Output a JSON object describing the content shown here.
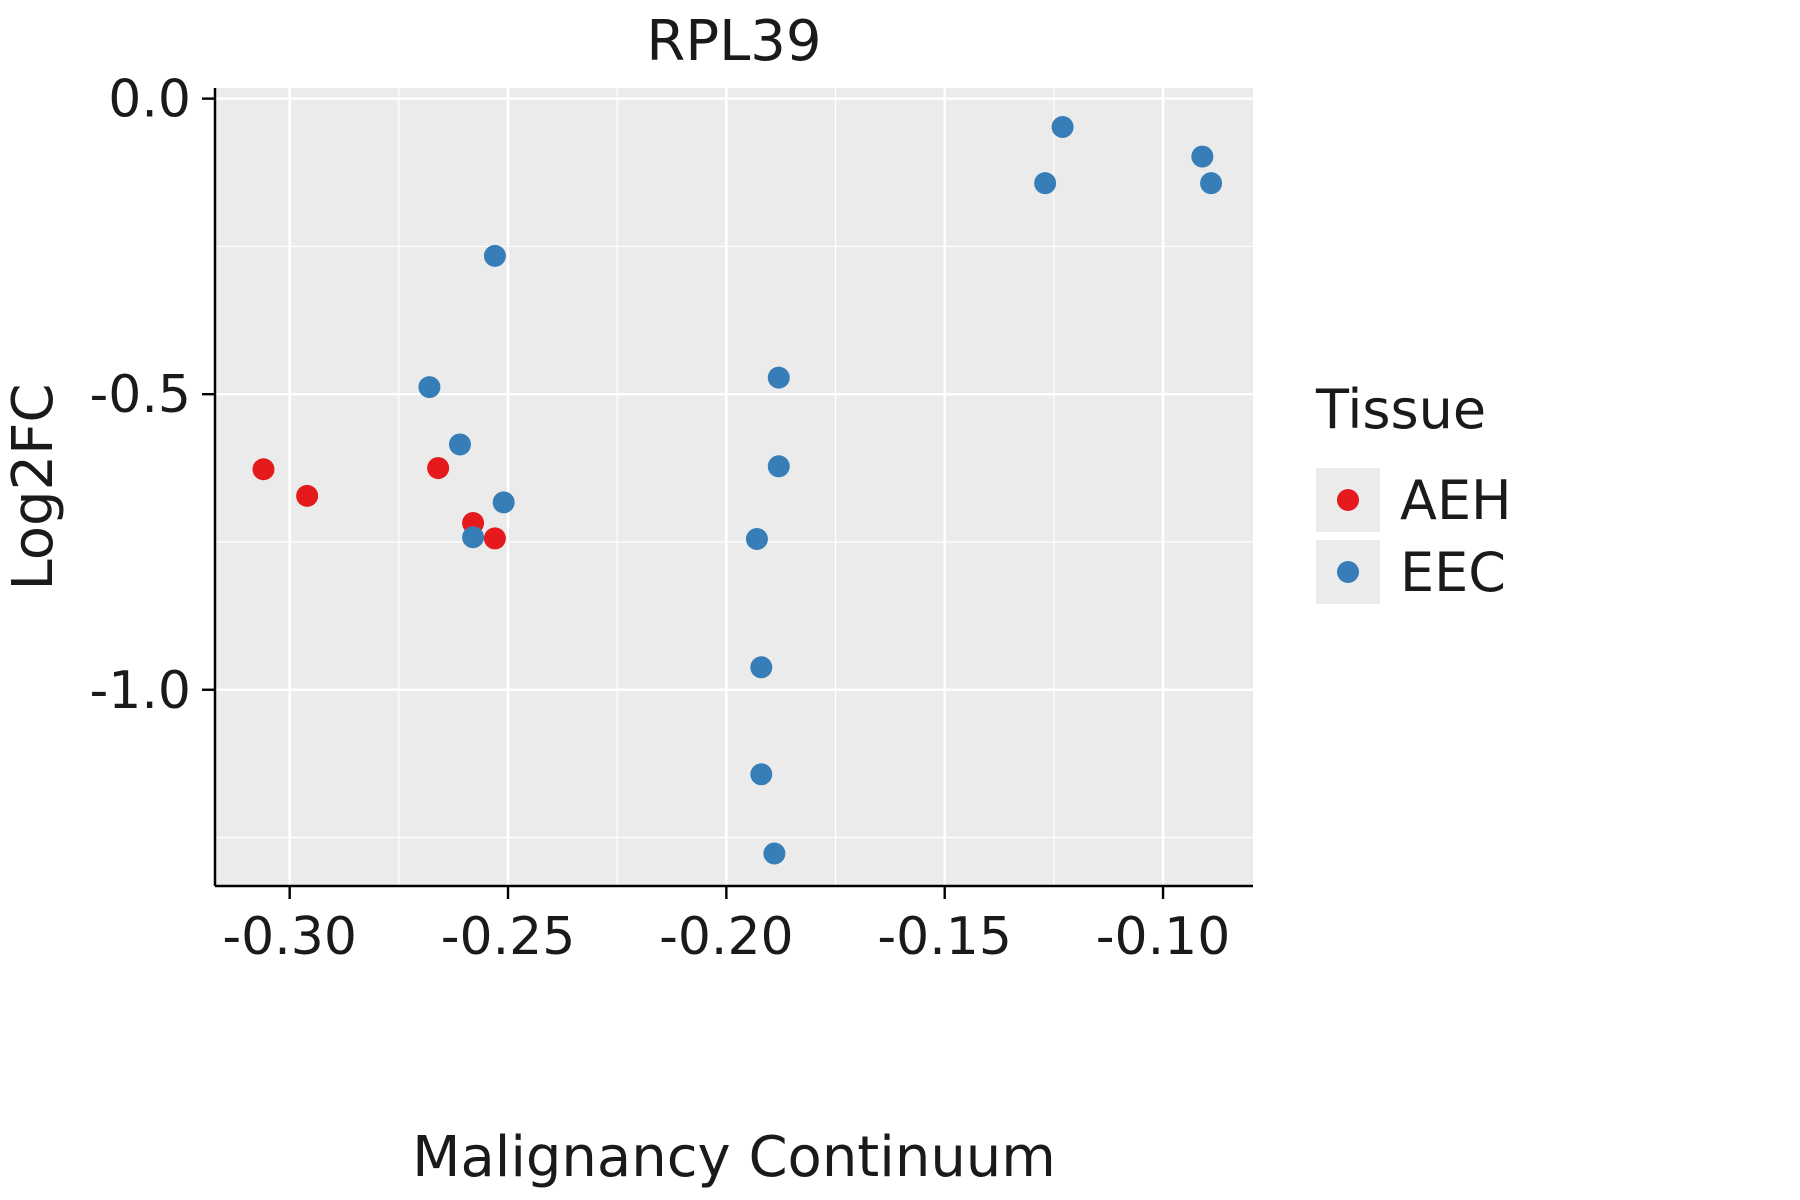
{
  "chart_data": {
    "type": "scatter",
    "title": "RPL39",
    "xlabel": "Malignancy Continuum",
    "ylabel": "Log2FC",
    "xlim": [
      -0.3171,
      -0.0794
    ],
    "ylim": [
      -1.332,
      0.018
    ],
    "x_ticks": [
      -0.3,
      -0.25,
      -0.2,
      -0.15,
      -0.1
    ],
    "x_tick_labels": [
      "-0.30",
      "-0.25",
      "-0.20",
      "-0.15",
      "-0.10"
    ],
    "x_minor_ticks": [
      -0.275,
      -0.225,
      -0.175,
      -0.125
    ],
    "y_ticks": [
      0.0,
      -0.5,
      -1.0
    ],
    "y_tick_labels": [
      "0.0",
      "-0.5",
      "-1.0"
    ],
    "y_minor_ticks": [
      -0.25,
      -0.75,
      -1.25
    ],
    "grid": true,
    "panel_bg": "#EBEBEB",
    "grid_color": "#FFFFFF",
    "axis_color": "#000000",
    "legend": {
      "title": "Tissue",
      "position": "right"
    },
    "series": [
      {
        "name": "AEH",
        "color": "#E41A1C",
        "points": [
          [
            -0.306,
            -0.627
          ],
          [
            -0.296,
            -0.672
          ],
          [
            -0.266,
            -0.625
          ],
          [
            -0.258,
            -0.718
          ],
          [
            -0.253,
            -0.744
          ]
        ]
      },
      {
        "name": "EEC",
        "color": "#377EB8",
        "points": [
          [
            -0.268,
            -0.488
          ],
          [
            -0.261,
            -0.585
          ],
          [
            -0.258,
            -0.742
          ],
          [
            -0.251,
            -0.683
          ],
          [
            -0.253,
            -0.266
          ],
          [
            -0.188,
            -0.472
          ],
          [
            -0.188,
            -0.622
          ],
          [
            -0.193,
            -0.745
          ],
          [
            -0.192,
            -0.962
          ],
          [
            -0.192,
            -1.143
          ],
          [
            -0.189,
            -1.277
          ],
          [
            -0.123,
            -0.048
          ],
          [
            -0.127,
            -0.143
          ],
          [
            -0.091,
            -0.098
          ],
          [
            -0.089,
            -0.143
          ]
        ]
      }
    ]
  }
}
